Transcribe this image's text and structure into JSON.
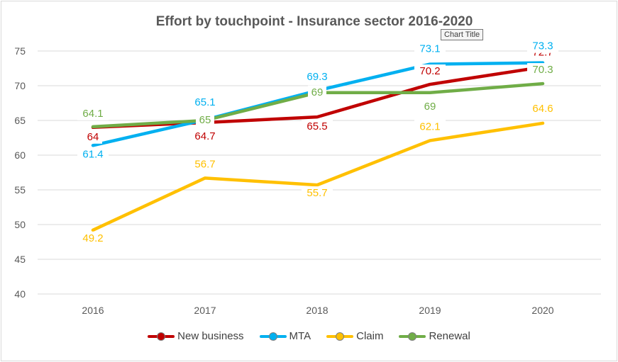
{
  "chart_data": {
    "type": "line",
    "title": "Effort by touchpoint - Insurance sector 2016-2020",
    "tooltip": "Chart Title",
    "categories": [
      "2016",
      "2017",
      "2018",
      "2019",
      "2020"
    ],
    "ylim": [
      40,
      75
    ],
    "yticks": [
      40,
      45,
      50,
      55,
      60,
      65,
      70,
      75
    ],
    "grid": true,
    "legend_position": "bottom",
    "series": [
      {
        "name": "New business",
        "color": "#c00000",
        "values": [
          64,
          64.7,
          65.5,
          70.2,
          72.7
        ]
      },
      {
        "name": "MTA",
        "color": "#00b0f0",
        "values": [
          61.4,
          65.1,
          69.3,
          73.1,
          73.3
        ]
      },
      {
        "name": "Claim",
        "color": "#ffc000",
        "values": [
          49.2,
          56.7,
          55.7,
          62.1,
          64.6
        ]
      },
      {
        "name": "Renewal",
        "color": "#70ad47",
        "values": [
          64.1,
          65,
          69,
          69,
          70.3
        ]
      }
    ]
  }
}
